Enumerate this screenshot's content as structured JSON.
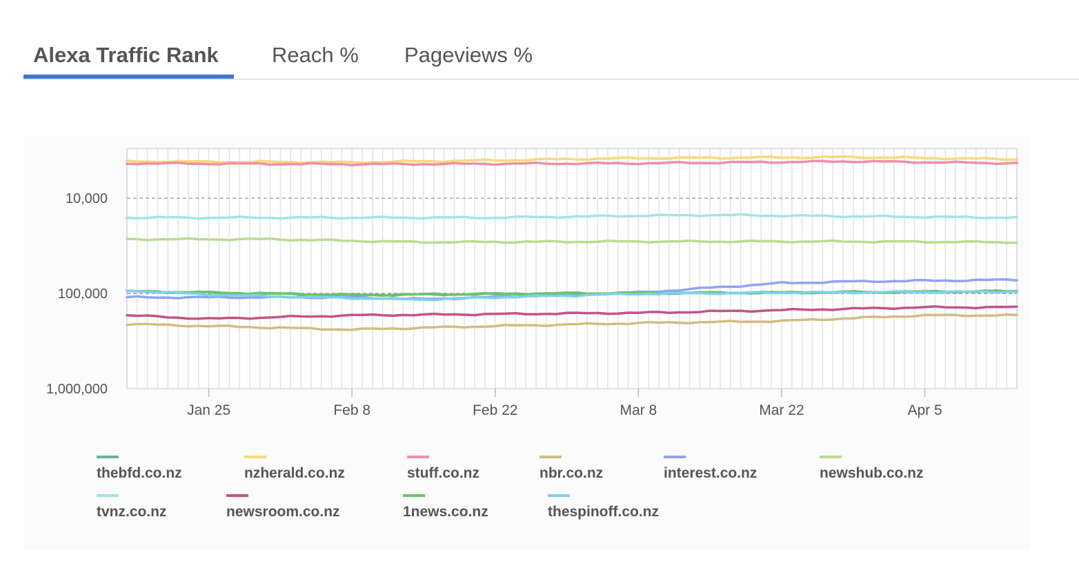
{
  "tabs": [
    {
      "label": "Alexa Traffic Rank",
      "active": true
    },
    {
      "label": "Reach %",
      "active": false
    },
    {
      "label": "Pageviews %",
      "active": false
    }
  ],
  "chart_data": {
    "type": "line",
    "y_scale": "log",
    "y_inverted": true,
    "ylim": [
      1000000,
      3000
    ],
    "yticks": [
      10000,
      100000,
      1000000
    ],
    "ytick_labels": [
      "10,000",
      "100,000",
      "1,000,000"
    ],
    "reference_line": 100000,
    "x_range": [
      "2021-01-17",
      "2021-04-14"
    ],
    "xticks": [
      "2021-01-25",
      "2021-02-08",
      "2021-02-22",
      "2021-03-08",
      "2021-03-22",
      "2021-04-05"
    ],
    "xtick_labels": [
      "Jan 25",
      "Feb 8",
      "Feb 22",
      "Mar 8",
      "Mar 22",
      "Apr 5"
    ],
    "grid": "vertical",
    "legend": "bottom",
    "series": [
      {
        "name": "thebfd.co.nz",
        "color": "#66b594",
        "x": [
          "2021-01-17",
          "2021-02-08",
          "2021-03-01",
          "2021-03-22",
          "2021-04-14"
        ],
        "y": [
          95000,
          104000,
          100000,
          98000,
          95000
        ]
      },
      {
        "name": "nzherald.co.nz",
        "color": "#f9d97a",
        "x": [
          "2021-01-17",
          "2021-02-08",
          "2021-03-08",
          "2021-03-29",
          "2021-04-14"
        ],
        "y": [
          4100,
          4200,
          3800,
          3700,
          3900
        ]
      },
      {
        "name": "stuff.co.nz",
        "color": "#ee8fa8",
        "x": [
          "2021-01-17",
          "2021-02-08",
          "2021-03-08",
          "2021-03-29",
          "2021-04-14"
        ],
        "y": [
          4300,
          4400,
          4300,
          4100,
          4300
        ]
      },
      {
        "name": "nbr.co.nz",
        "color": "#d2bd80",
        "x": [
          "2021-01-17",
          "2021-02-08",
          "2021-02-22",
          "2021-03-08",
          "2021-03-22",
          "2021-04-05",
          "2021-04-14"
        ],
        "y": [
          210000,
          240000,
          220000,
          205000,
          195000,
          170000,
          170000
        ]
      },
      {
        "name": "interest.co.nz",
        "color": "#8ea4f5",
        "x": [
          "2021-01-17",
          "2021-02-08",
          "2021-02-15",
          "2021-03-01",
          "2021-03-08",
          "2021-03-22",
          "2021-03-29",
          "2021-04-14"
        ],
        "y": [
          110000,
          110000,
          115000,
          103000,
          98000,
          78000,
          75000,
          72000
        ]
      },
      {
        "name": "newshub.co.nz",
        "color": "#b9dc90",
        "x": [
          "2021-01-17",
          "2021-01-31",
          "2021-02-15",
          "2021-03-08",
          "2021-03-29",
          "2021-04-14"
        ],
        "y": [
          27000,
          27000,
          29000,
          28500,
          28500,
          29000
        ]
      },
      {
        "name": "tvnz.co.nz",
        "color": "#a4e3e7",
        "x": [
          "2021-01-17",
          "2021-02-08",
          "2021-02-22",
          "2021-03-08",
          "2021-03-15",
          "2021-03-29",
          "2021-04-14"
        ],
        "y": [
          16000,
          16000,
          16000,
          15300,
          15000,
          15500,
          16000
        ]
      },
      {
        "name": "newsroom.co.nz",
        "color": "#c25488",
        "x": [
          "2021-01-17",
          "2021-01-25",
          "2021-02-08",
          "2021-02-22",
          "2021-03-08",
          "2021-03-22",
          "2021-04-05",
          "2021-04-14"
        ],
        "y": [
          170000,
          185000,
          170000,
          165000,
          160000,
          150000,
          140000,
          140000
        ]
      },
      {
        "name": "1news.co.nz",
        "color": "#6cc466",
        "x": [
          "2021-01-17",
          "2021-02-08",
          "2021-03-01",
          "2021-03-22",
          "2021-04-14"
        ],
        "y": [
          95000,
          104000,
          100000,
          98000,
          95000
        ]
      },
      {
        "name": "thespinoff.co.nz",
        "color": "#7fd1ec",
        "x": [
          "2021-01-17",
          "2021-01-25",
          "2021-02-08",
          "2021-02-15",
          "2021-02-22",
          "2021-03-08",
          "2021-03-22",
          "2021-04-14"
        ],
        "y": [
          93000,
          103000,
          112000,
          116000,
          110000,
          101000,
          98000,
          96000
        ]
      }
    ]
  }
}
